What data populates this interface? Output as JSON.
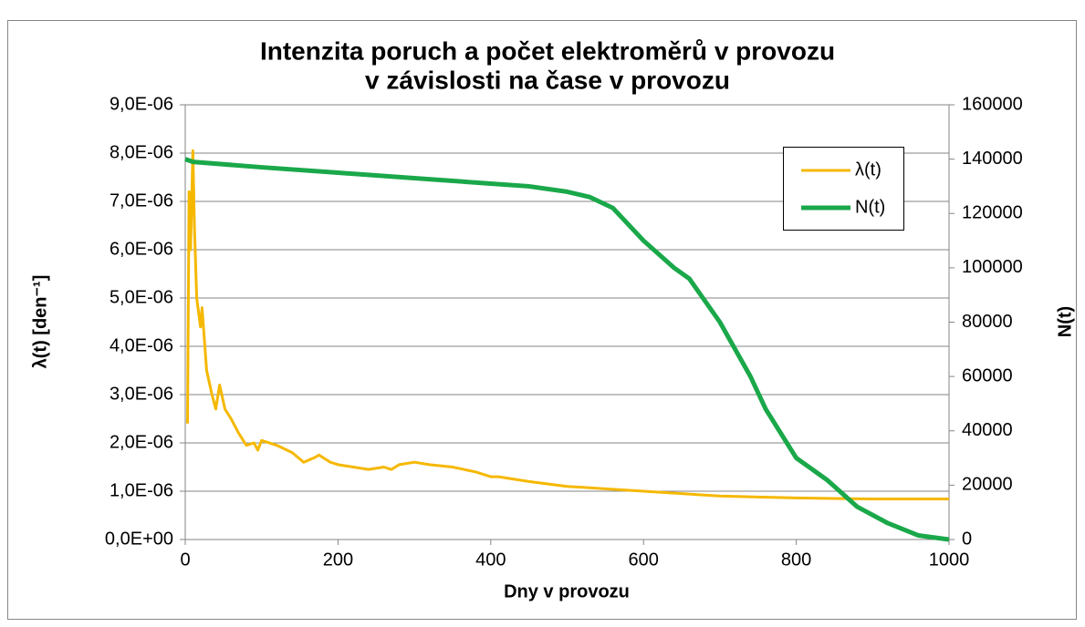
{
  "chart_data": {
    "type": "line",
    "title": [
      "Intenzita poruch a počet elektroměrů v provozu",
      "v závislosti na čase v provozu"
    ],
    "x_label": "Dny v provozu",
    "y_label": "λ(t) [den⁻¹]",
    "y2_label": "N(t)",
    "xlim": [
      0,
      1000
    ],
    "xticks": [
      0,
      200,
      400,
      600,
      800,
      1000
    ],
    "ylim": [
      0,
      9e-06
    ],
    "yticks": [
      {
        "value": 0,
        "label": "0,0E+00"
      },
      {
        "value": 1e-06,
        "label": "1,0E-06"
      },
      {
        "value": 2e-06,
        "label": "2,0E-06"
      },
      {
        "value": 3e-06,
        "label": "3,0E-06"
      },
      {
        "value": 4e-06,
        "label": "4,0E-06"
      },
      {
        "value": 5e-06,
        "label": "5,0E-06"
      },
      {
        "value": 6e-06,
        "label": "6,0E-06"
      },
      {
        "value": 7e-06,
        "label": "7,0E-06"
      },
      {
        "value": 8e-06,
        "label": "8,0E-06"
      },
      {
        "value": 9e-06,
        "label": "9,0E-06"
      }
    ],
    "y2lim": [
      0,
      160000
    ],
    "y2ticks": [
      0,
      20000,
      40000,
      60000,
      80000,
      100000,
      120000,
      140000,
      160000
    ],
    "grid": true,
    "legend": "top-right",
    "series": [
      {
        "name": "λ(t)",
        "color": "#f5b800",
        "axis": "y",
        "x": [
          3,
          5,
          7,
          10,
          12,
          15,
          20,
          22,
          28,
          35,
          40,
          45,
          52,
          60,
          70,
          80,
          90,
          95,
          100,
          120,
          140,
          155,
          170,
          175,
          190,
          200,
          220,
          240,
          260,
          270,
          280,
          300,
          320,
          350,
          380,
          400,
          410,
          450,
          500,
          550,
          600,
          650,
          700,
          750,
          800,
          850,
          900,
          1000
        ],
        "values": [
          2.4e-06,
          7.2e-06,
          6e-06,
          8.05e-06,
          6.5e-06,
          5e-06,
          4.4e-06,
          4.8e-06,
          3.5e-06,
          3e-06,
          2.7e-06,
          3.2e-06,
          2.7e-06,
          2.5e-06,
          2.2e-06,
          1.95e-06,
          2e-06,
          1.85e-06,
          2.05e-06,
          1.95e-06,
          1.8e-06,
          1.6e-06,
          1.7e-06,
          1.75e-06,
          1.6e-06,
          1.55e-06,
          1.5e-06,
          1.45e-06,
          1.5e-06,
          1.45e-06,
          1.55e-06,
          1.6e-06,
          1.55e-06,
          1.5e-06,
          1.4e-06,
          1.3e-06,
          1.3e-06,
          1.2e-06,
          1.1e-06,
          1.05e-06,
          1e-06,
          9.5e-07,
          9e-07,
          8.8e-07,
          8.6e-07,
          8.5e-07,
          8.4e-07,
          8.4e-07
        ]
      },
      {
        "name": "N(t)",
        "color": "#1aa84a",
        "axis": "y2",
        "x": [
          0,
          10,
          100,
          200,
          300,
          400,
          450,
          500,
          530,
          560,
          600,
          640,
          660,
          700,
          740,
          760,
          800,
          840,
          880,
          920,
          960,
          1000
        ],
        "values": [
          140000,
          139000,
          137000,
          135000,
          133000,
          131000,
          130000,
          128000,
          126000,
          122000,
          110000,
          100000,
          96000,
          80000,
          60000,
          48000,
          30000,
          22000,
          12000,
          6000,
          1500,
          0
        ]
      }
    ]
  }
}
